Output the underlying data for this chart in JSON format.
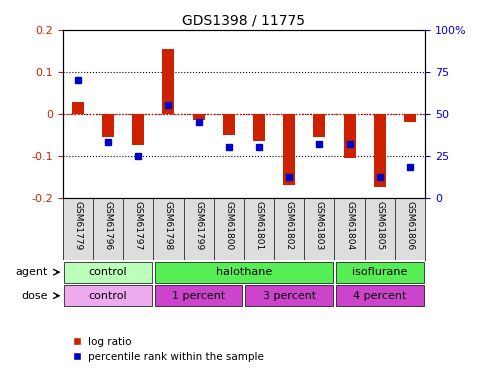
{
  "title": "GDS1398 / 11775",
  "samples": [
    "GSM61779",
    "GSM61796",
    "GSM61797",
    "GSM61798",
    "GSM61799",
    "GSM61800",
    "GSM61801",
    "GSM61802",
    "GSM61803",
    "GSM61804",
    "GSM61805",
    "GSM61806"
  ],
  "log_ratio": [
    0.028,
    -0.055,
    -0.075,
    0.155,
    -0.015,
    -0.05,
    -0.065,
    -0.17,
    -0.055,
    -0.105,
    -0.175,
    -0.02
  ],
  "percentile_rank": [
    70,
    33,
    25,
    55,
    45,
    30,
    30,
    12,
    32,
    32,
    12,
    18
  ],
  "ylim": [
    -0.2,
    0.2
  ],
  "yticks_left": [
    -0.2,
    -0.1,
    0,
    0.1,
    0.2
  ],
  "yticks_right": [
    0,
    25,
    50,
    75,
    100
  ],
  "bar_color": "#cc2200",
  "dot_color": "#0000cc",
  "agent_groups": [
    {
      "label": "control",
      "start": 0,
      "end": 3,
      "color": "#aaffaa"
    },
    {
      "label": "halothane",
      "start": 3,
      "end": 9,
      "color": "#44dd44"
    },
    {
      "label": "isoflurane",
      "start": 9,
      "end": 12,
      "color": "#44dd44"
    }
  ],
  "dose_groups": [
    {
      "label": "control",
      "start": 0,
      "end": 3,
      "color": "#ddaadd"
    },
    {
      "label": "1 percent",
      "start": 3,
      "end": 6,
      "color": "#dd44dd"
    },
    {
      "label": "3 percent",
      "start": 6,
      "end": 9,
      "color": "#dd44dd"
    },
    {
      "label": "4 percent",
      "start": 9,
      "end": 12,
      "color": "#dd44dd"
    }
  ],
  "legend_bar_label": "log ratio",
  "legend_dot_label": "percentile rank within the sample",
  "grid_color": "black",
  "zero_line_color": "red",
  "bg_color": "white",
  "plot_bg_color": "white"
}
